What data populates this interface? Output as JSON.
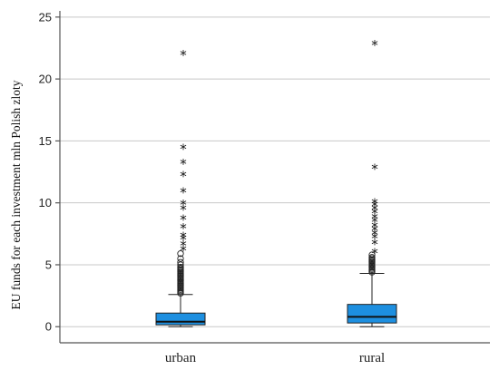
{
  "chart_data": {
    "type": "boxplot",
    "ylabel": "EU funds for each investment mln Polish zloty",
    "xlabel": "",
    "ylim": [
      -1.3,
      25.5
    ],
    "yticks": [
      0,
      5,
      10,
      15,
      20,
      25
    ],
    "ytick_labels": [
      "0",
      "5",
      "10",
      "15",
      "20",
      "25"
    ],
    "grid": true,
    "colors": {
      "box": "#1d8fe0",
      "grid": "#c8c8c8"
    },
    "categories": [
      "urban",
      "rural"
    ],
    "boxes": [
      {
        "name": "urban",
        "whisker_low": 0.0,
        "q1": 0.15,
        "median": 0.4,
        "q3": 1.1,
        "whisker_high": 2.6,
        "outliers_circle": [
          2.7,
          2.8,
          2.9,
          3.0,
          3.1,
          3.2,
          3.3,
          3.4,
          3.5,
          3.6,
          3.7,
          3.8,
          3.9,
          4.0,
          4.1,
          4.2,
          4.3,
          4.4,
          4.5,
          4.6,
          4.7,
          4.8,
          5.0,
          5.2,
          5.5,
          5.9
        ],
        "outliers_star": [
          6.2,
          6.6,
          7.1,
          7.3,
          8.0,
          8.7,
          9.5,
          9.9,
          10.9,
          12.2,
          13.2,
          14.4,
          22.0
        ]
      },
      {
        "name": "rural",
        "whisker_low": 0.0,
        "q1": 0.3,
        "median": 0.8,
        "q3": 1.8,
        "whisker_high": 4.3,
        "outliers_circle": [
          4.4,
          4.5,
          4.6,
          4.7,
          4.8,
          4.9,
          5.0,
          5.1,
          5.2,
          5.3,
          5.4,
          5.5,
          5.6,
          5.8
        ],
        "outliers_star": [
          6.0,
          6.7,
          7.2,
          7.5,
          7.8,
          8.1,
          8.5,
          8.8,
          9.2,
          9.5,
          9.8,
          10.0,
          12.8,
          22.8
        ]
      }
    ]
  }
}
